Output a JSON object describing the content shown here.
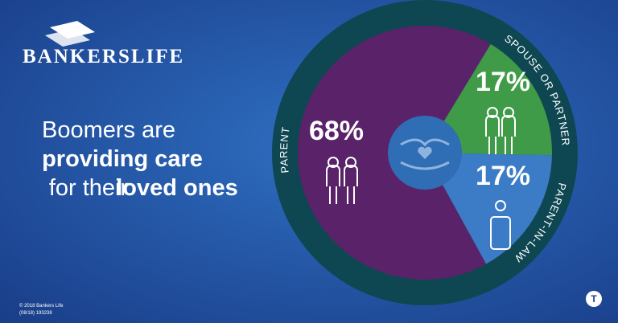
{
  "logo": "BANKERSLIFE",
  "headline": [
    "Boomers are",
    "providing care",
    "for their",
    "loved ones"
  ],
  "copyright": "© 2018 Bankers Life",
  "code": "(08/18) 193238",
  "chart_data": {
    "type": "pie",
    "categories": [
      "PARENT",
      "SPOUSE OR PARTNER",
      "PARENT-IN-LAW"
    ],
    "values": [
      68,
      17,
      17
    ],
    "value_labels": [
      "68%",
      "17%",
      "17%"
    ],
    "colors": [
      "#5a2269",
      "#3f9b47",
      "#3c7bc6"
    ]
  }
}
